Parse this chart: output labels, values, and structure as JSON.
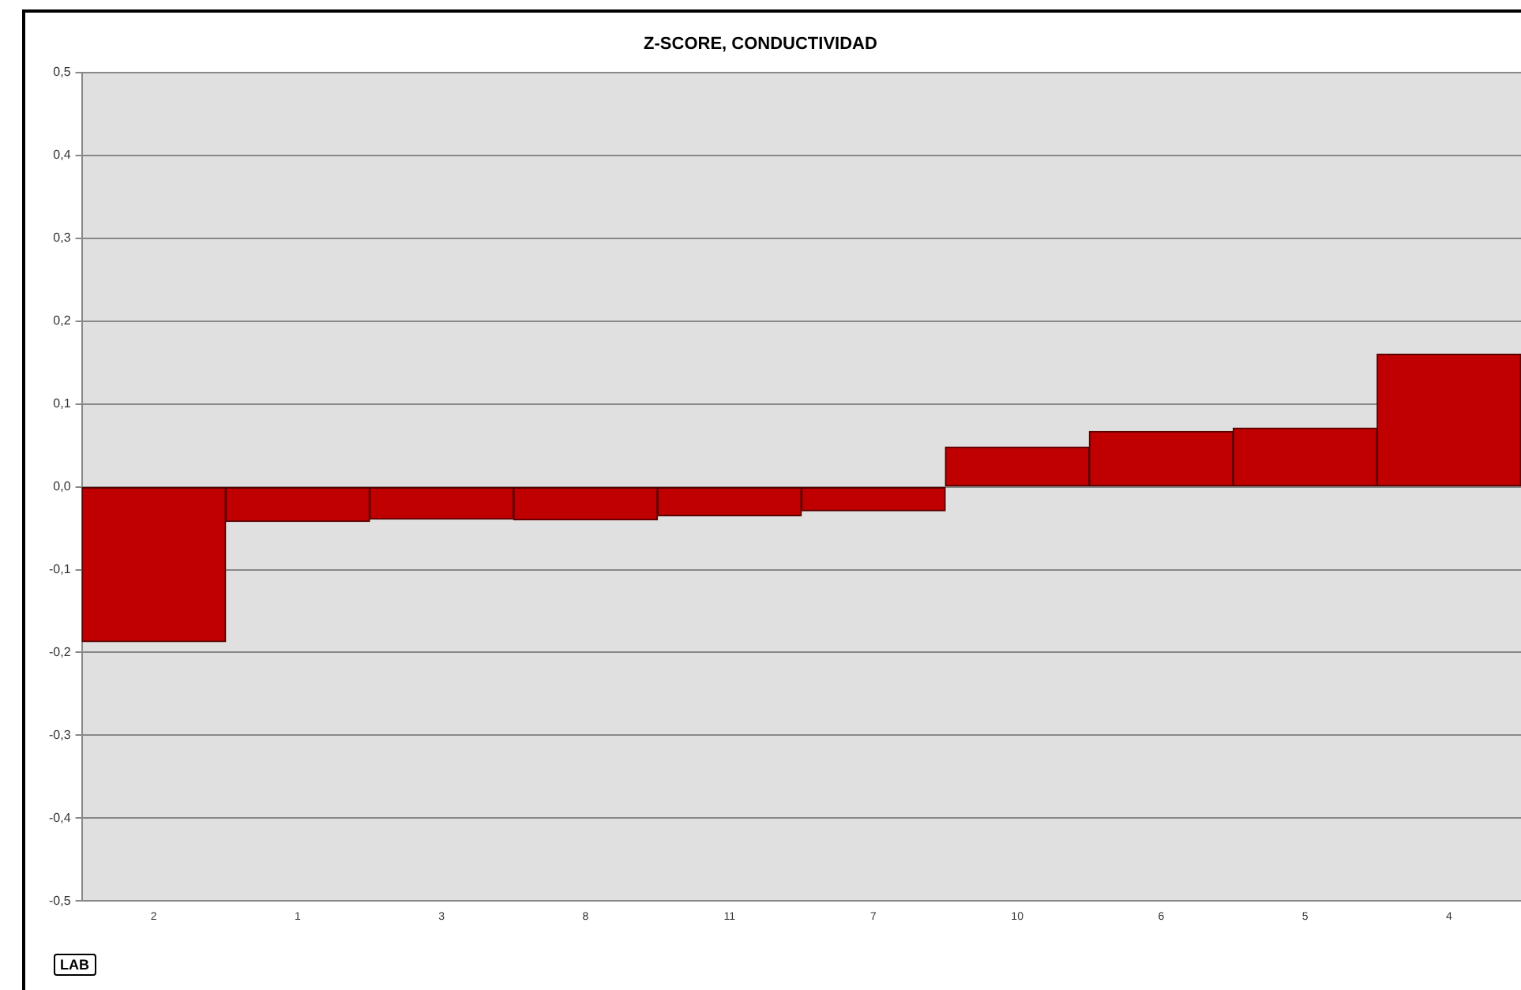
{
  "chart_data": {
    "type": "bar",
    "title": "Z-SCORE, CONDUCTIVIDAD",
    "categories": [
      "2",
      "1",
      "3",
      "8",
      "11",
      "7",
      "10",
      "6",
      "5",
      "4"
    ],
    "values": [
      -0.187,
      -0.042,
      -0.039,
      -0.04,
      -0.035,
      -0.029,
      0.048,
      0.067,
      0.071,
      0.16
    ],
    "color": "#c00000",
    "ylim": [
      -0.5,
      0.5
    ],
    "yticks": [
      {
        "value": -0.5,
        "label": "-0,5"
      },
      {
        "value": -0.4,
        "label": "-0,4"
      },
      {
        "value": -0.3,
        "label": "-0,3"
      },
      {
        "value": -0.2,
        "label": "-0,2"
      },
      {
        "value": -0.1,
        "label": "-0,1"
      },
      {
        "value": 0,
        "label": "0,0"
      },
      {
        "value": 0.1,
        "label": "0,1"
      },
      {
        "value": 0.2,
        "label": "0,2"
      },
      {
        "value": 0.3,
        "label": "0,3"
      },
      {
        "value": 0.4,
        "label": "0,4"
      },
      {
        "value": 0.5,
        "label": "0,5"
      }
    ],
    "grid": "y",
    "annotations": [
      "LAB"
    ]
  }
}
